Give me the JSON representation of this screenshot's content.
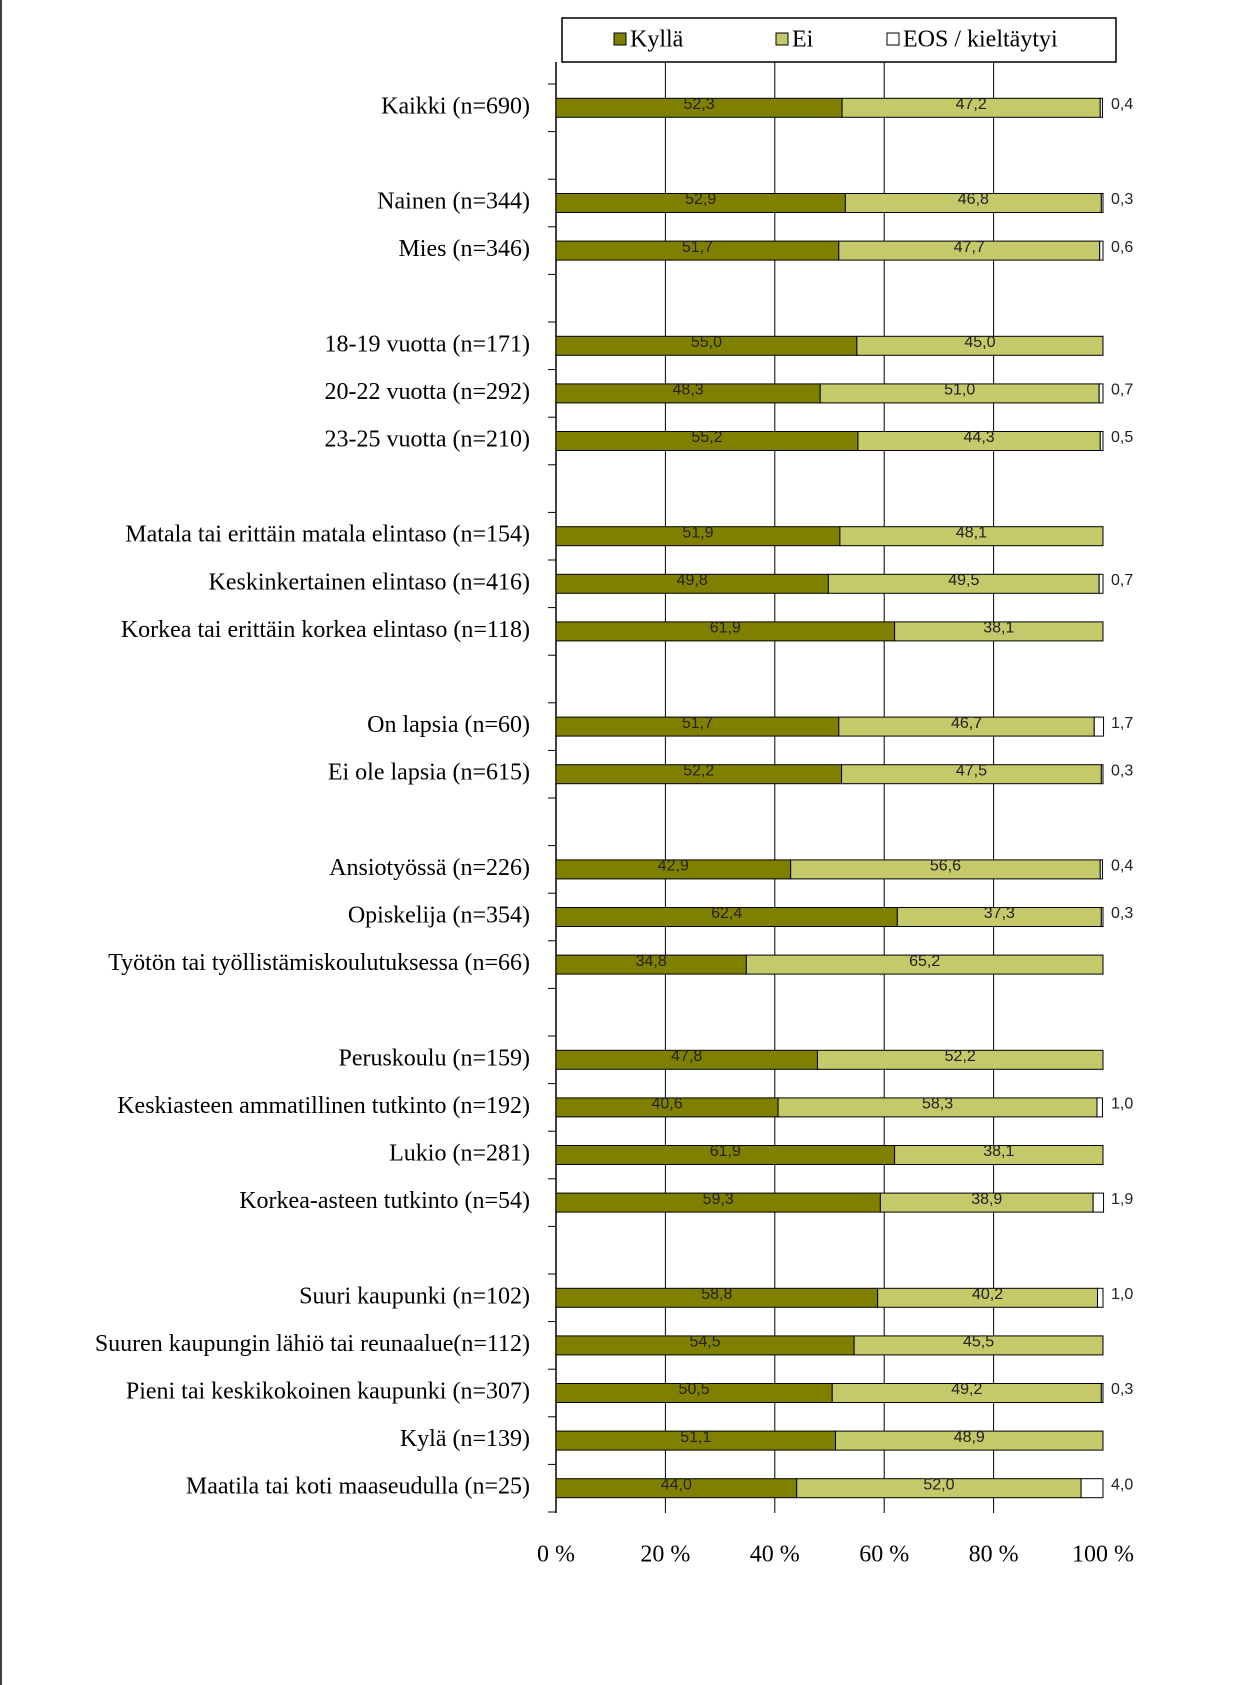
{
  "chart_data": {
    "type": "stacked-barh",
    "categories": [
      "Kaikki (n=690)",
      null,
      "Nainen (n=344)",
      "Mies (n=346)",
      null,
      "18-19 vuotta (n=171)",
      "20-22 vuotta (n=292)",
      "23-25 vuotta (n=210)",
      null,
      "Matala tai erittäin matala elintaso (n=154)",
      "Keskinkertainen elintaso (n=416)",
      "Korkea tai erittäin korkea elintaso (n=118)",
      null,
      "On lapsia (n=60)",
      "Ei ole lapsia (n=615)",
      null,
      "Ansiotyössä (n=226)",
      "Opiskelija (n=354)",
      "Työtön tai työllistämiskoulutuksessa (n=66)",
      null,
      "Peruskoulu (n=159)",
      "Keskiasteen ammatillinen tutkinto (n=192)",
      "Lukio (n=281)",
      "Korkea-asteen tutkinto (n=54)",
      null,
      "Suuri kaupunki (n=102)",
      "Suuren kaupungin lähiö tai reunaalue(n=112)",
      "Pieni tai keskikokoinen kaupunki (n=307)",
      "Kylä (n=139)",
      "Maatila tai koti maaseudulla (n=25)"
    ],
    "series": [
      {
        "name": "Kyllä",
        "color": "#808000",
        "values": [
          52.3,
          null,
          52.9,
          51.7,
          null,
          55.0,
          48.3,
          55.2,
          null,
          51.9,
          49.8,
          61.9,
          null,
          51.7,
          52.2,
          null,
          42.9,
          62.4,
          34.8,
          null,
          47.8,
          40.6,
          61.9,
          59.3,
          null,
          58.8,
          54.5,
          50.5,
          51.1,
          44.0
        ],
        "value_labels": [
          "52,3",
          null,
          "52,9",
          "51,7",
          null,
          "55,0",
          "48,3",
          "55,2",
          null,
          "51,9",
          "49,8",
          "61,9",
          null,
          "51,7",
          "52,2",
          null,
          "42,9",
          "62,4",
          "34,8",
          null,
          "47,8",
          "40,6",
          "61,9",
          "59,3",
          null,
          "58,8",
          "54,5",
          "50,5",
          "51,1",
          "44,0"
        ]
      },
      {
        "name": "Ei",
        "color": "#c4c96a",
        "values": [
          47.2,
          null,
          46.8,
          47.7,
          null,
          45.0,
          51.0,
          44.3,
          null,
          48.1,
          49.5,
          38.1,
          null,
          46.7,
          47.5,
          null,
          56.6,
          37.3,
          65.2,
          null,
          52.2,
          58.3,
          38.1,
          38.9,
          null,
          40.2,
          45.5,
          49.2,
          48.9,
          52.0
        ],
        "value_labels": [
          "47,2",
          null,
          "46,8",
          "47,7",
          null,
          "45,0",
          "51,0",
          "44,3",
          null,
          "48,1",
          "49,5",
          "38,1",
          null,
          "46,7",
          "47,5",
          null,
          "56,6",
          "37,3",
          "65,2",
          null,
          "52,2",
          "58,3",
          "38,1",
          "38,9",
          null,
          "40,2",
          "45,5",
          "49,2",
          "48,9",
          "52,0"
        ]
      },
      {
        "name": "EOS / kieltäytyi",
        "color": "#ffffff",
        "values": [
          0.4,
          null,
          0.3,
          0.6,
          null,
          null,
          0.7,
          0.5,
          null,
          null,
          0.7,
          null,
          null,
          1.7,
          0.3,
          null,
          0.4,
          0.3,
          null,
          null,
          null,
          1.0,
          null,
          1.9,
          null,
          1.0,
          null,
          0.3,
          null,
          4.0
        ],
        "value_labels": [
          "0,4",
          null,
          "0,3",
          "0,6",
          null,
          null,
          "0,7",
          "0,5",
          null,
          null,
          "0,7",
          null,
          null,
          "1,7",
          "0,3",
          null,
          "0,4",
          "0,3",
          null,
          null,
          null,
          "1,0",
          null,
          "1,9",
          null,
          "1,0",
          null,
          "0,3",
          null,
          "4,0"
        ]
      }
    ],
    "xlim": [
      0,
      100
    ],
    "xticks": [
      {
        "value": 0,
        "label": "0 %"
      },
      {
        "value": 20,
        "label": "20 %"
      },
      {
        "value": 40,
        "label": "40 %"
      },
      {
        "value": 60,
        "label": "60 %"
      },
      {
        "value": 80,
        "label": "80 %"
      },
      {
        "value": 100,
        "label": "100 %"
      }
    ],
    "grid": true,
    "legend": "top"
  }
}
